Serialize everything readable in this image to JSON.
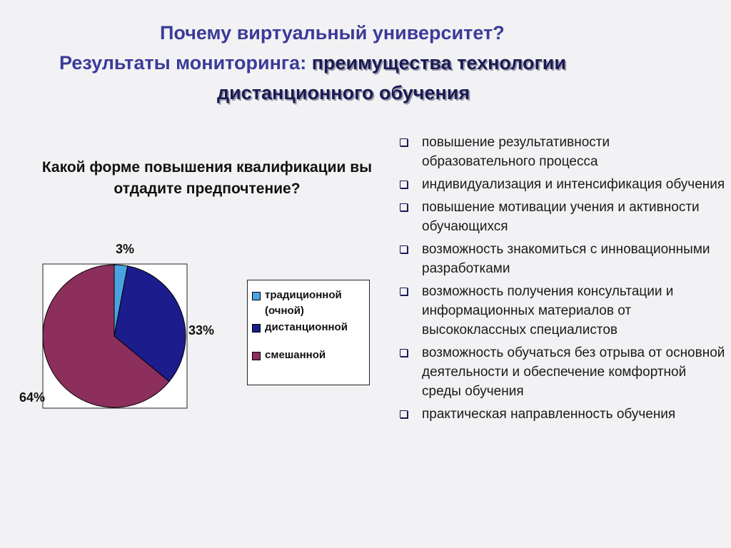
{
  "title": {
    "line1": "Почему виртуальный университет?",
    "line2_prefix": "Результаты мониторинга: ",
    "line2_highlight": "преимущества технологии",
    "line3": "дистанционного обучения"
  },
  "chart_data": {
    "type": "pie",
    "title": "Какой форме повышения квалификации вы отдадите предпочтение?",
    "slices": [
      {
        "label": "традиционной (очной)",
        "value": 3,
        "value_label": "3%",
        "color": "#4aa3e0"
      },
      {
        "label": "дистанционной",
        "value": 33,
        "value_label": "33%",
        "color": "#1c1c8c"
      },
      {
        "label": "смешанной",
        "value": 64,
        "value_label": "64%",
        "color": "#8c2f5c"
      }
    ],
    "legend_position": "right"
  },
  "bullets": [
    "повышение результативности образовательного процесса",
    "индивидуализация и интенсификация обучения",
    "повышение мотивации учения и активности обучающихся",
    "возможность знакомиться с инновационными разработками",
    "возможность получения консультации и информационных материалов от высококлассных специалистов",
    "возможность обучаться без отрыва от основной деятельности и обеспечение комфортной среды обучения",
    "практическая направленность обучения"
  ]
}
